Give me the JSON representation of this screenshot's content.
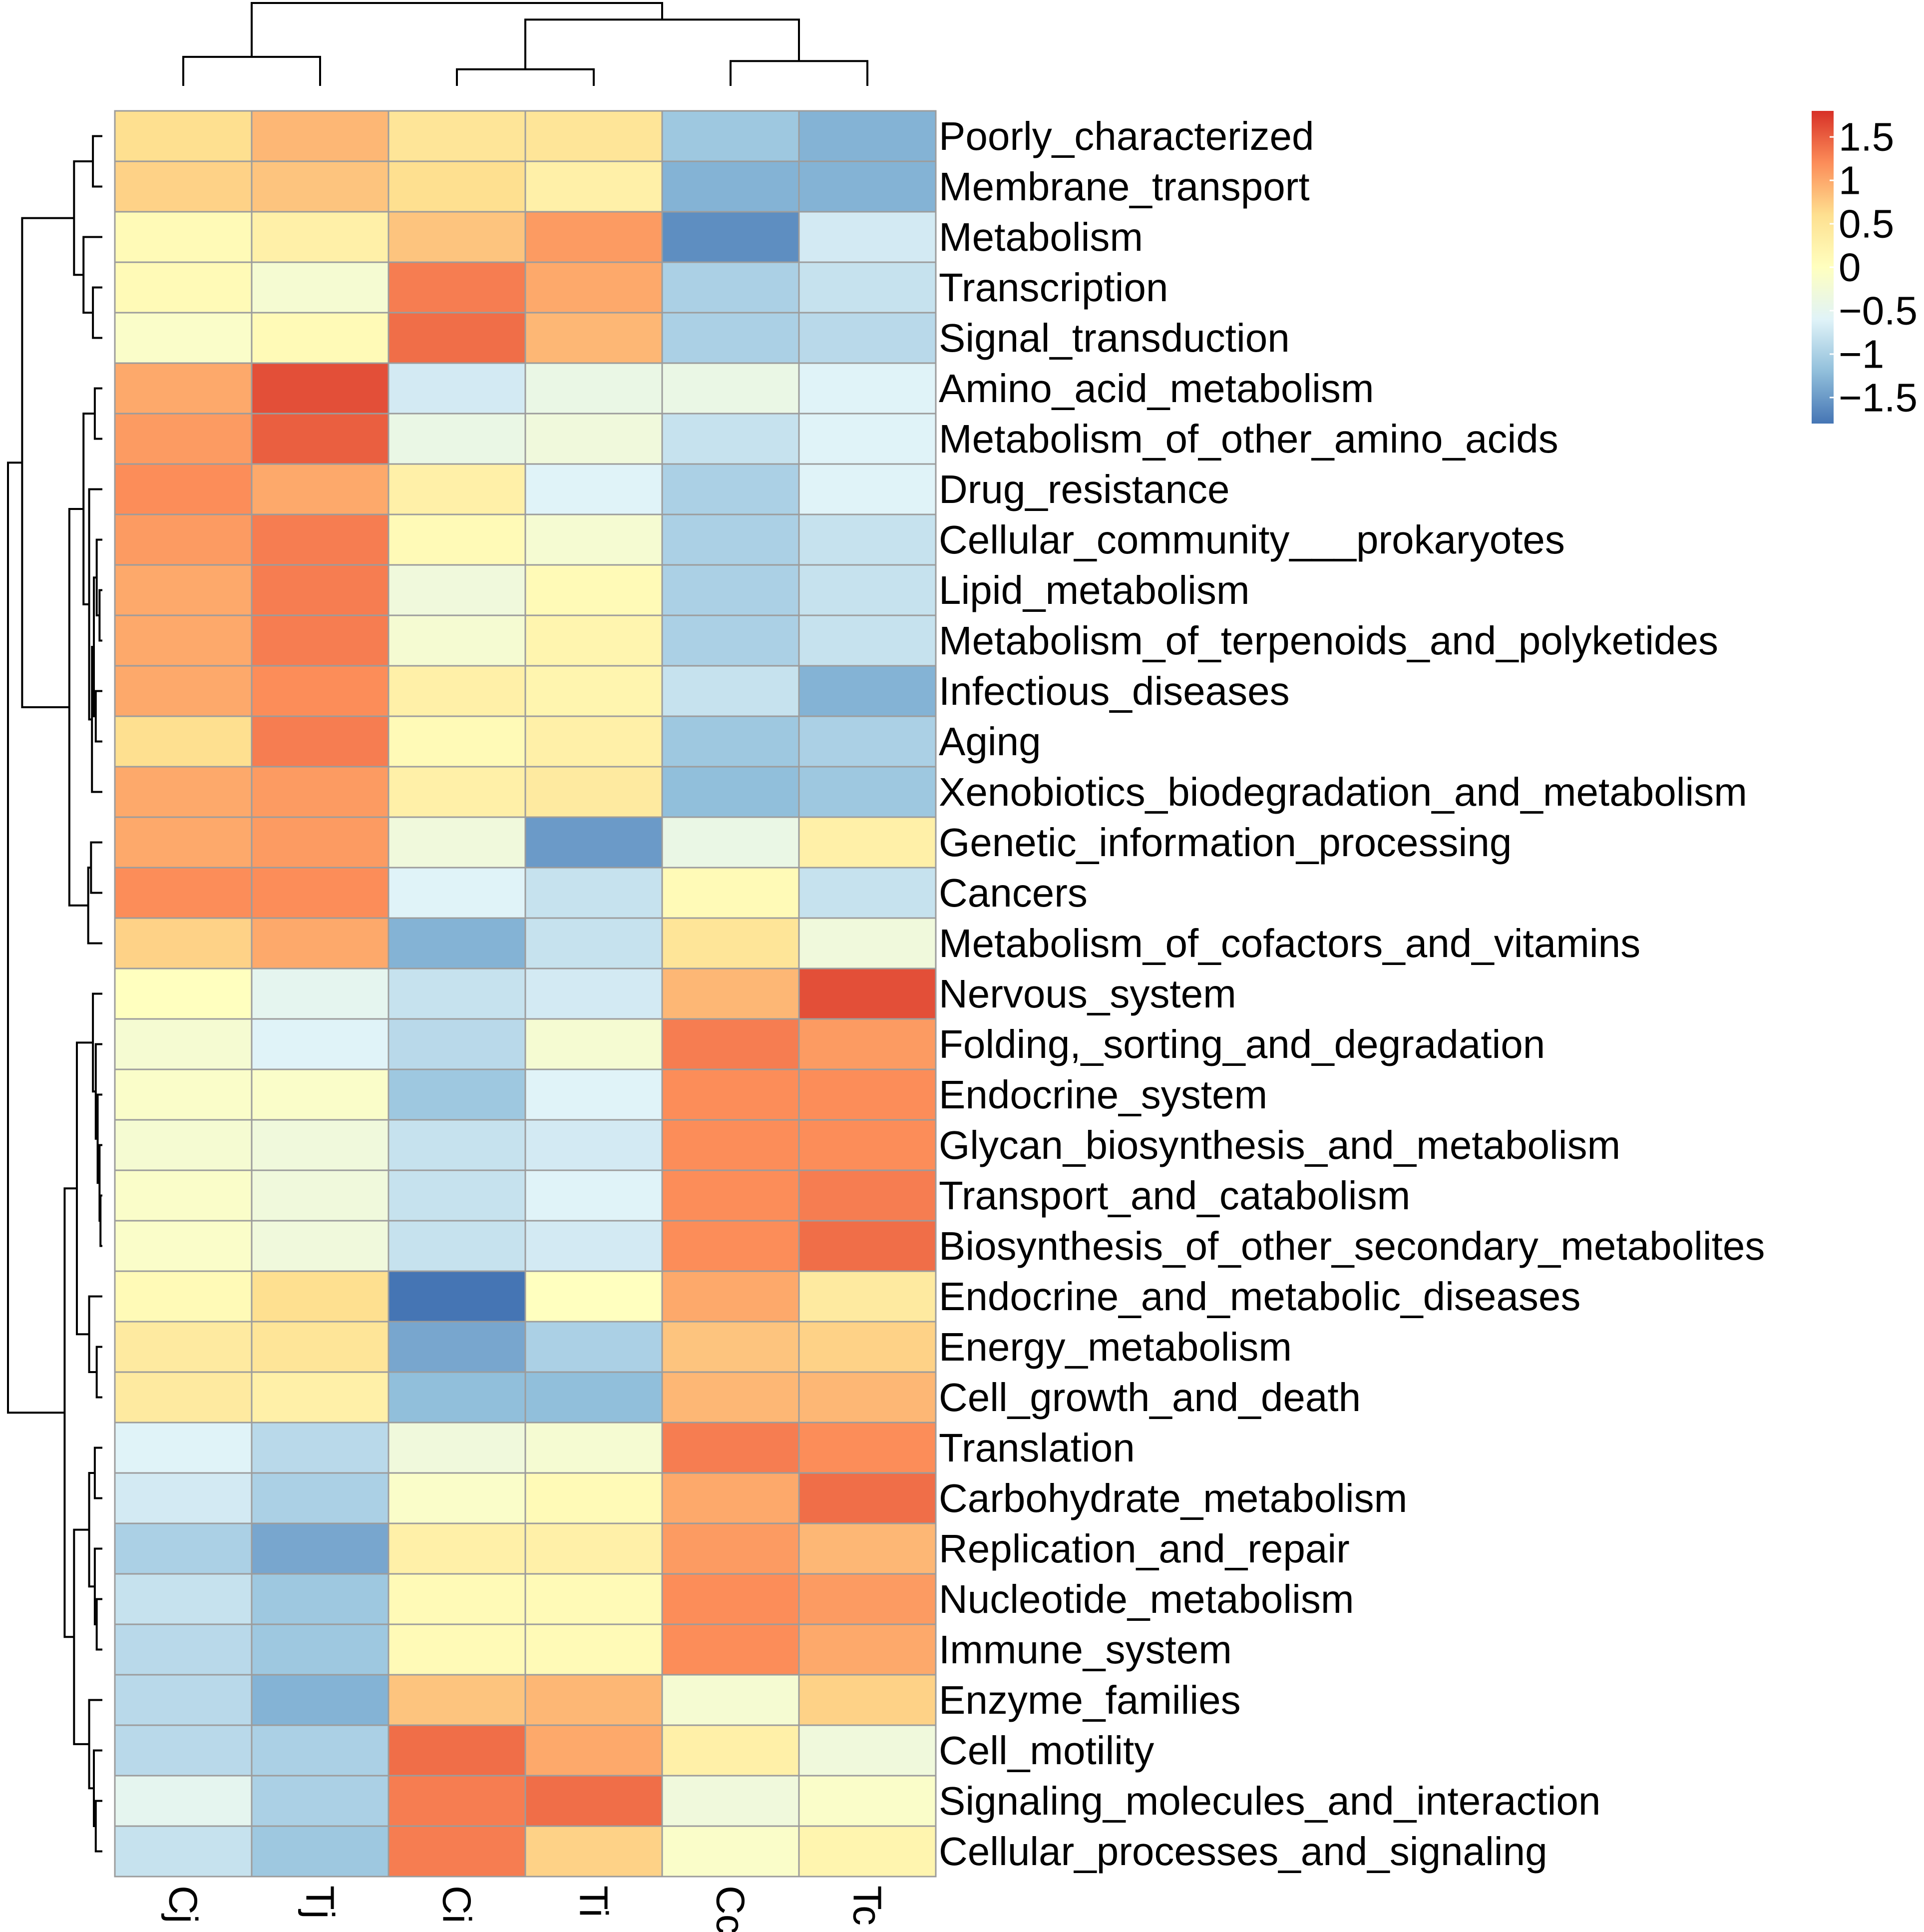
{
  "chart_data": {
    "type": "heatmap",
    "title": "",
    "columns": [
      "Cj",
      "Tj",
      "Ci",
      "Ti",
      "Cc",
      "Tc"
    ],
    "rows": [
      "Poorly_characterized",
      "Membrane_transport",
      "Metabolism",
      "Transcription",
      "Signal_transduction",
      "Amino_acid_metabolism",
      "Metabolism_of_other_amino_acids",
      "Drug_resistance",
      "Cellular_community___prokaryotes",
      "Lipid_metabolism",
      "Metabolism_of_terpenoids_and_polyketides",
      "Infectious_diseases",
      "Aging",
      "Xenobiotics_biodegradation_and_metabolism",
      "Genetic_information_processing",
      "Cancers",
      "Metabolism_of_cofactors_and_vitamins",
      "Nervous_system",
      "Folding,_sorting_and_degradation",
      "Endocrine_system",
      "Glycan_biosynthesis_and_metabolism",
      "Transport_and_catabolism",
      "Biosynthesis_of_other_secondary_metabolites",
      "Endocrine_and_metabolic_diseases",
      "Energy_metabolism",
      "Cell_growth_and_death",
      "Translation",
      "Carbohydrate_metabolism",
      "Replication_and_repair",
      "Nucleotide_metabolism",
      "Immune_system",
      "Enzyme_families",
      "Cell_motility",
      "Signaling_molecules_and_interaction",
      "Cellular_processes_and_signaling"
    ],
    "values": [
      [
        0.6,
        0.9,
        0.5,
        0.5,
        -1.1,
        -1.3
      ],
      [
        0.7,
        0.8,
        0.6,
        0.3,
        -1.3,
        -1.3
      ],
      [
        0.1,
        0.3,
        0.8,
        1.1,
        -1.6,
        -0.7
      ],
      [
        0.1,
        -0.2,
        1.3,
        1.0,
        -1.0,
        -0.8
      ],
      [
        -0.1,
        0.1,
        1.4,
        0.9,
        -1.0,
        -0.9
      ],
      [
        1.0,
        1.6,
        -0.7,
        -0.4,
        -0.4,
        -0.6
      ],
      [
        1.1,
        1.5,
        -0.4,
        -0.3,
        -0.8,
        -0.6
      ],
      [
        1.2,
        1.0,
        0.3,
        -0.6,
        -1.0,
        -0.6
      ],
      [
        1.1,
        1.3,
        0.1,
        -0.2,
        -1.0,
        -0.8
      ],
      [
        1.0,
        1.3,
        -0.3,
        0.1,
        -1.0,
        -0.8
      ],
      [
        1.0,
        1.3,
        -0.2,
        0.2,
        -1.0,
        -0.8
      ],
      [
        1.0,
        1.2,
        0.3,
        0.2,
        -0.8,
        -1.3
      ],
      [
        0.6,
        1.3,
        0.1,
        0.3,
        -1.1,
        -1.0
      ],
      [
        1.0,
        1.1,
        0.3,
        0.4,
        -1.2,
        -1.1
      ],
      [
        1.0,
        1.1,
        -0.3,
        -1.5,
        -0.4,
        0.3
      ],
      [
        1.2,
        1.2,
        -0.6,
        -0.8,
        0.1,
        -0.8
      ],
      [
        0.7,
        1.0,
        -1.3,
        -0.8,
        0.5,
        -0.3
      ],
      [
        0.0,
        -0.5,
        -0.8,
        -0.7,
        0.9,
        1.6
      ],
      [
        -0.2,
        -0.6,
        -0.9,
        -0.2,
        1.3,
        1.1
      ],
      [
        -0.1,
        -0.1,
        -1.1,
        -0.6,
        1.2,
        1.2
      ],
      [
        -0.2,
        -0.3,
        -0.8,
        -0.7,
        1.2,
        1.2
      ],
      [
        -0.1,
        -0.3,
        -0.8,
        -0.6,
        1.2,
        1.3
      ],
      [
        -0.1,
        -0.3,
        -0.8,
        -0.7,
        1.2,
        1.4
      ],
      [
        0.1,
        0.6,
        -1.8,
        0.0,
        1.0,
        0.4
      ],
      [
        0.4,
        0.5,
        -1.4,
        -1.0,
        0.8,
        0.7
      ],
      [
        0.4,
        0.3,
        -1.2,
        -1.2,
        0.9,
        0.9
      ],
      [
        -0.6,
        -0.9,
        -0.3,
        -0.2,
        1.3,
        1.2
      ],
      [
        -0.7,
        -1.0,
        -0.1,
        0.1,
        1.0,
        1.4
      ],
      [
        -1.0,
        -1.4,
        0.3,
        0.3,
        1.1,
        0.9
      ],
      [
        -0.8,
        -1.1,
        0.1,
        0.1,
        1.2,
        1.1
      ],
      [
        -0.9,
        -1.1,
        0.1,
        0.1,
        1.2,
        1.0
      ],
      [
        -0.9,
        -1.3,
        0.8,
        0.9,
        -0.2,
        0.7
      ],
      [
        -0.9,
        -1.0,
        1.4,
        1.0,
        0.3,
        -0.3
      ],
      [
        -0.5,
        -1.0,
        1.3,
        1.4,
        -0.3,
        -0.1
      ],
      [
        -0.8,
        -1.1,
        1.3,
        0.7,
        -0.1,
        0.2
      ]
    ],
    "color_scale": {
      "min": -1.8,
      "max": 1.8,
      "colors": [
        "#4575b4",
        "#91bfdb",
        "#e0f3f8",
        "#ffffbf",
        "#fee090",
        "#fc8d59",
        "#d73027"
      ],
      "ticks": [
        1.5,
        1,
        0.5,
        0,
        -0.5,
        -1,
        -1.5
      ],
      "tick_labels": [
        "1.5",
        "1",
        "0.5",
        "0",
        "−0.5",
        "−1",
        "−1.5"
      ]
    },
    "column_dendrogram": [
      {
        "id": "c1",
        "merge": [
          "Cj",
          "Tj"
        ],
        "height": 0.35
      },
      {
        "id": "c2",
        "merge": [
          "Ci",
          "Ti"
        ],
        "height": 0.2
      },
      {
        "id": "c3",
        "merge": [
          "Cc",
          "Tc"
        ],
        "height": 0.3
      },
      {
        "id": "c4",
        "merge": [
          "c2",
          "c3"
        ],
        "height": 0.8
      },
      {
        "id": "c5",
        "merge": [
          "c1",
          "c4"
        ],
        "height": 1.0
      }
    ],
    "row_dendrogram": [
      {
        "id": "g1",
        "merge": [
          "Poorly_characterized",
          "Membrane_transport"
        ],
        "height": 0.1
      },
      {
        "id": "g2",
        "merge": [
          "Transcription",
          "Signal_transduction"
        ],
        "height": 0.1
      },
      {
        "id": "g3",
        "merge": [
          "Metabolism",
          "g2"
        ],
        "height": 0.2
      },
      {
        "id": "g4",
        "merge": [
          "g1",
          "g3"
        ],
        "height": 0.3
      },
      {
        "id": "g5",
        "merge": [
          "Amino_acid_metabolism",
          "Metabolism_of_other_amino_acids"
        ],
        "height": 0.08
      },
      {
        "id": "g6",
        "merge": [
          "Lipid_metabolism",
          "Metabolism_of_terpenoids_and_polyketides"
        ],
        "height": 0.03
      },
      {
        "id": "g7",
        "merge": [
          "Cellular_community___prokaryotes",
          "g6"
        ],
        "height": 0.06
      },
      {
        "id": "g8",
        "merge": [
          "Infectious_diseases",
          "Aging"
        ],
        "height": 0.07
      },
      {
        "id": "g9",
        "merge": [
          "g7",
          "g8"
        ],
        "height": 0.09
      },
      {
        "id": "g10",
        "merge": [
          "g9",
          "Xenobiotics_biodegradation_and_metabolism"
        ],
        "height": 0.11
      },
      {
        "id": "g11",
        "merge": [
          "Drug_resistance",
          "g10"
        ],
        "height": 0.14
      },
      {
        "id": "g12",
        "merge": [
          "g5",
          "g11"
        ],
        "height": 0.2
      },
      {
        "id": "g13",
        "merge": [
          "Genetic_information_processing",
          "Cancers"
        ],
        "height": 0.12
      },
      {
        "id": "g14",
        "merge": [
          "g13",
          "Metabolism_of_cofactors_and_vitamins"
        ],
        "height": 0.15
      },
      {
        "id": "g15",
        "merge": [
          "g12",
          "g14"
        ],
        "height": 0.35
      },
      {
        "id": "g16",
        "merge": [
          "g4",
          "g15"
        ],
        "height": 0.85
      },
      {
        "id": "g17",
        "merge": [
          "Transport_and_catabolism",
          "Biosynthesis_of_other_secondary_metabolites"
        ],
        "height": 0.02
      },
      {
        "id": "g18",
        "merge": [
          "Glycan_biosynthesis_and_metabolism",
          "g17"
        ],
        "height": 0.03
      },
      {
        "id": "g19",
        "merge": [
          "Endocrine_system",
          "g18"
        ],
        "height": 0.05
      },
      {
        "id": "g20",
        "merge": [
          "Folding,_sorting_and_degradation",
          "g19"
        ],
        "height": 0.07
      },
      {
        "id": "g21",
        "merge": [
          "Nervous_system",
          "g20"
        ],
        "height": 0.1
      },
      {
        "id": "g22",
        "merge": [
          "Energy_metabolism",
          "Cell_growth_and_death"
        ],
        "height": 0.06
      },
      {
        "id": "g23",
        "merge": [
          "Endocrine_and_metabolic_diseases",
          "g22"
        ],
        "height": 0.14
      },
      {
        "id": "g24",
        "merge": [
          "g21",
          "g23"
        ],
        "height": 0.27
      },
      {
        "id": "g25",
        "merge": [
          "Translation",
          "Carbohydrate_metabolism"
        ],
        "height": 0.08
      },
      {
        "id": "g26",
        "merge": [
          "Nucleotide_metabolism",
          "Immune_system"
        ],
        "height": 0.06
      },
      {
        "id": "g27",
        "merge": [
          "Replication_and_repair",
          "g26"
        ],
        "height": 0.08
      },
      {
        "id": "g28",
        "merge": [
          "g25",
          "g27"
        ],
        "height": 0.14
      },
      {
        "id": "g29",
        "merge": [
          "Signaling_molecules_and_interaction",
          "Cellular_processes_and_signaling"
        ],
        "height": 0.07
      },
      {
        "id": "g30",
        "merge": [
          "Cell_motility",
          "g29"
        ],
        "height": 0.09
      },
      {
        "id": "g31",
        "merge": [
          "Enzyme_families",
          "g30"
        ],
        "height": 0.14
      },
      {
        "id": "g32",
        "merge": [
          "g28",
          "g31"
        ],
        "height": 0.3
      },
      {
        "id": "g33",
        "merge": [
          "g24",
          "g32"
        ],
        "height": 0.4
      },
      {
        "id": "g34",
        "merge": [
          "g16",
          "g33"
        ],
        "height": 1.0
      }
    ]
  }
}
